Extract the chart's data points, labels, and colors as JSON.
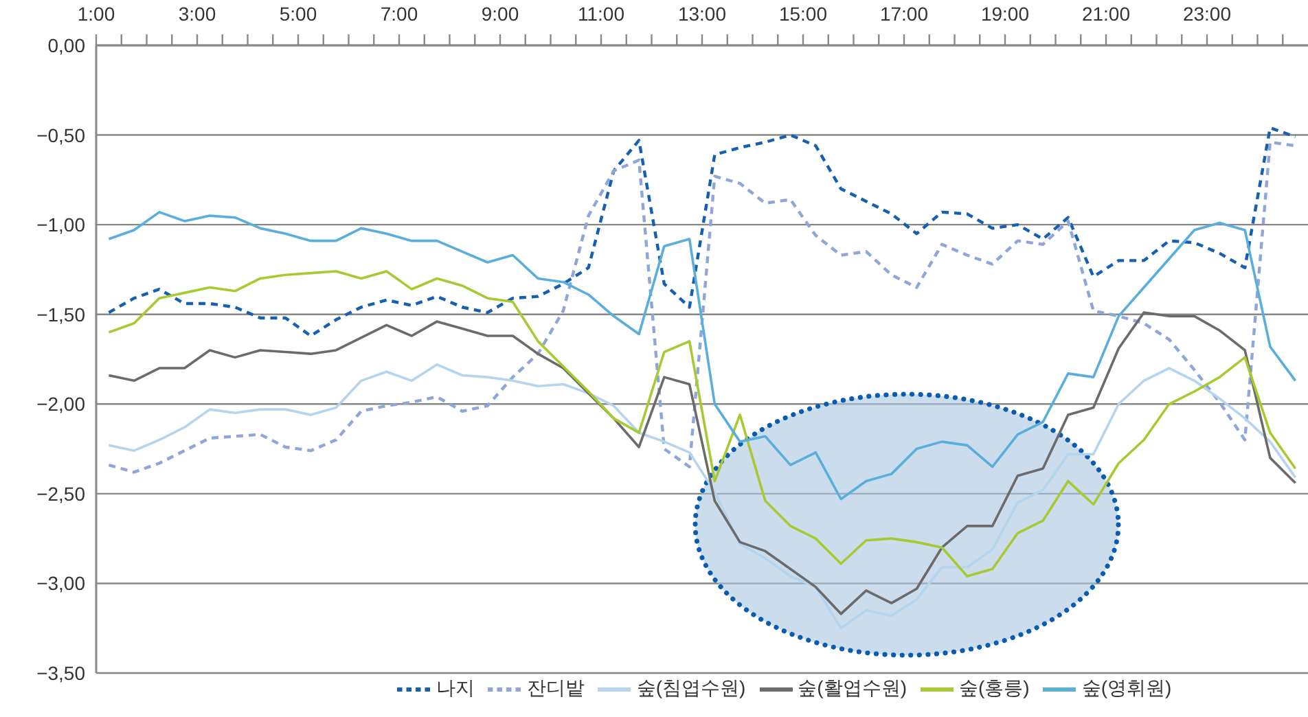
{
  "chart_data": {
    "type": "line",
    "x": [
      1.25,
      1.75,
      2.25,
      2.75,
      3.25,
      3.75,
      4.25,
      4.75,
      5.25,
      5.75,
      6.25,
      6.75,
      7.25,
      7.75,
      8.25,
      8.75,
      9.25,
      9.75,
      10.25,
      10.75,
      11.25,
      11.75,
      12.25,
      12.75,
      13.25,
      13.75,
      14.25,
      14.75,
      15.25,
      15.75,
      16.25,
      16.75,
      17.25,
      17.75,
      18.25,
      18.75,
      19.25,
      19.75,
      20.25,
      20.75,
      21.25,
      21.75,
      22.25,
      22.75,
      23.25,
      23.75,
      24.25,
      24.75
    ],
    "series": [
      {
        "name": "나지",
        "color": "#1560b0",
        "line_style": "dashed",
        "values": [
          -1.49,
          -1.41,
          -1.36,
          -1.44,
          -1.44,
          -1.46,
          -1.52,
          -1.52,
          -1.62,
          -1.53,
          -1.46,
          -1.42,
          -1.45,
          -1.4,
          -1.46,
          -1.49,
          -1.41,
          -1.4,
          -1.33,
          -1.24,
          -0.7,
          -0.53,
          -1.33,
          -1.46,
          -0.61,
          -0.57,
          -0.54,
          -0.5,
          -0.56,
          -0.8,
          -0.87,
          -0.94,
          -1.05,
          -0.93,
          -0.94,
          -1.02,
          -1.0,
          -1.08,
          -0.96,
          -1.29,
          -1.2,
          -1.2,
          -1.09,
          -1.1,
          -1.16,
          -1.24,
          -0.46,
          -0.51
        ]
      },
      {
        "name": "잔디밭",
        "color": "#8ea6d8",
        "line_style": "dashed",
        "values": [
          -2.34,
          -2.38,
          -2.33,
          -2.26,
          -2.19,
          -2.18,
          -2.17,
          -2.24,
          -2.26,
          -2.2,
          -2.04,
          -2.01,
          -1.99,
          -1.96,
          -2.04,
          -2.01,
          -1.85,
          -1.72,
          -1.48,
          -0.95,
          -0.7,
          -0.64,
          -2.25,
          -2.35,
          -0.73,
          -0.77,
          -0.88,
          -0.86,
          -1.06,
          -1.17,
          -1.15,
          -1.28,
          -1.35,
          -1.11,
          -1.17,
          -1.22,
          -1.09,
          -1.11,
          -0.98,
          -1.48,
          -1.51,
          -1.55,
          -1.64,
          -1.81,
          -1.99,
          -2.2,
          -0.54,
          -0.56
        ]
      },
      {
        "name": "숲(침엽수원)",
        "color": "#b5d5ee",
        "line_style": "solid",
        "values": [
          -2.23,
          -2.26,
          -2.2,
          -2.13,
          -2.03,
          -2.05,
          -2.03,
          -2.03,
          -2.06,
          -2.02,
          -1.87,
          -1.82,
          -1.87,
          -1.78,
          -1.84,
          -1.85,
          -1.87,
          -1.9,
          -1.89,
          -1.94,
          -2.01,
          -2.16,
          -2.21,
          -2.27,
          -2.49,
          -2.78,
          -2.86,
          -2.96,
          -3.02,
          -3.25,
          -3.15,
          -3.18,
          -3.09,
          -2.91,
          -2.91,
          -2.81,
          -2.55,
          -2.48,
          -2.28,
          -2.28,
          -2.0,
          -1.87,
          -1.8,
          -1.87,
          -1.97,
          -2.08,
          -2.21,
          -2.41
        ]
      },
      {
        "name": "숲(활엽수원)",
        "color": "#6b6b6b",
        "line_style": "solid",
        "values": [
          -1.84,
          -1.87,
          -1.8,
          -1.8,
          -1.7,
          -1.74,
          -1.7,
          -1.71,
          -1.72,
          -1.7,
          -1.63,
          -1.56,
          -1.62,
          -1.54,
          -1.58,
          -1.62,
          -1.62,
          -1.72,
          -1.8,
          -1.94,
          -2.08,
          -2.24,
          -1.85,
          -1.89,
          -2.54,
          -2.77,
          -2.82,
          -2.92,
          -3.02,
          -3.17,
          -3.04,
          -3.11,
          -3.03,
          -2.8,
          -2.68,
          -2.68,
          -2.4,
          -2.36,
          -2.06,
          -2.02,
          -1.69,
          -1.49,
          -1.51,
          -1.51,
          -1.59,
          -1.7,
          -2.3,
          -2.44
        ]
      },
      {
        "name": "숲(홍릉)",
        "color": "#a9c932",
        "line_style": "solid",
        "values": [
          -1.6,
          -1.55,
          -1.41,
          -1.38,
          -1.35,
          -1.37,
          -1.3,
          -1.28,
          -1.27,
          -1.26,
          -1.3,
          -1.26,
          -1.36,
          -1.3,
          -1.34,
          -1.41,
          -1.43,
          -1.65,
          -1.79,
          -1.93,
          -2.08,
          -2.16,
          -1.71,
          -1.65,
          -2.43,
          -2.06,
          -2.54,
          -2.68,
          -2.75,
          -2.89,
          -2.76,
          -2.75,
          -2.77,
          -2.8,
          -2.96,
          -2.92,
          -2.72,
          -2.65,
          -2.43,
          -2.56,
          -2.33,
          -2.2,
          -2.0,
          -1.93,
          -1.85,
          -1.74,
          -2.16,
          -2.36
        ]
      },
      {
        "name": "숲(영휘원)",
        "color": "#5aaedc",
        "line_style": "solid",
        "values": [
          -1.08,
          -1.03,
          -0.93,
          -0.98,
          -0.95,
          -0.96,
          -1.02,
          -1.05,
          -1.09,
          -1.09,
          -1.02,
          -1.05,
          -1.09,
          -1.09,
          -1.15,
          -1.21,
          -1.17,
          -1.3,
          -1.32,
          -1.39,
          -1.51,
          -1.61,
          -1.12,
          -1.08,
          -2.0,
          -2.21,
          -2.18,
          -2.34,
          -2.27,
          -2.53,
          -2.43,
          -2.39,
          -2.25,
          -2.21,
          -2.23,
          -2.35,
          -2.17,
          -2.1,
          -1.83,
          -1.85,
          -1.51,
          -1.35,
          -1.19,
          -1.03,
          -0.99,
          -1.03,
          -1.68,
          -1.87
        ]
      }
    ],
    "xlim": [
      1,
      25
    ],
    "xticks": [
      {
        "value": 1,
        "label": "1:00"
      },
      {
        "value": 1.5,
        "label": null
      },
      {
        "value": 2,
        "label": null
      },
      {
        "value": 2.5,
        "label": null
      },
      {
        "value": 3,
        "label": "3:00"
      },
      {
        "value": 3.5,
        "label": null
      },
      {
        "value": 4,
        "label": null
      },
      {
        "value": 4.5,
        "label": null
      },
      {
        "value": 5,
        "label": "5:00"
      },
      {
        "value": 5.5,
        "label": null
      },
      {
        "value": 6,
        "label": null
      },
      {
        "value": 6.5,
        "label": null
      },
      {
        "value": 7,
        "label": "7:00"
      },
      {
        "value": 7.5,
        "label": null
      },
      {
        "value": 8,
        "label": null
      },
      {
        "value": 8.5,
        "label": null
      },
      {
        "value": 9,
        "label": "9:00"
      },
      {
        "value": 9.5,
        "label": null
      },
      {
        "value": 10,
        "label": null
      },
      {
        "value": 10.5,
        "label": null
      },
      {
        "value": 11,
        "label": "11:00"
      },
      {
        "value": 11.5,
        "label": null
      },
      {
        "value": 12,
        "label": null
      },
      {
        "value": 12.5,
        "label": null
      },
      {
        "value": 13,
        "label": "13:00"
      },
      {
        "value": 13.5,
        "label": null
      },
      {
        "value": 14,
        "label": null
      },
      {
        "value": 14.5,
        "label": null
      },
      {
        "value": 15,
        "label": "15:00"
      },
      {
        "value": 15.5,
        "label": null
      },
      {
        "value": 16,
        "label": null
      },
      {
        "value": 16.5,
        "label": null
      },
      {
        "value": 17,
        "label": "17:00"
      },
      {
        "value": 17.5,
        "label": null
      },
      {
        "value": 18,
        "label": null
      },
      {
        "value": 18.5,
        "label": null
      },
      {
        "value": 19,
        "label": "19:00"
      },
      {
        "value": 19.5,
        "label": null
      },
      {
        "value": 20,
        "label": null
      },
      {
        "value": 20.5,
        "label": null
      },
      {
        "value": 21,
        "label": "21:00"
      },
      {
        "value": 21.5,
        "label": null
      },
      {
        "value": 22,
        "label": null
      },
      {
        "value": 22.5,
        "label": null
      },
      {
        "value": 23,
        "label": "23:00"
      },
      {
        "value": 23.5,
        "label": null
      },
      {
        "value": 24,
        "label": null
      },
      {
        "value": 24.5,
        "label": null
      }
    ],
    "ylim": [
      -3.5,
      0
    ],
    "yticks": [
      {
        "value": 0,
        "label": "0,00"
      },
      {
        "value": -0.5,
        "label": "−0,50"
      },
      {
        "value": -1,
        "label": "−1,00"
      },
      {
        "value": -1.5,
        "label": "−1,50"
      },
      {
        "value": -2,
        "label": "−2,00"
      },
      {
        "value": -2.5,
        "label": "−2,50"
      },
      {
        "value": -3,
        "label": "−3,00"
      },
      {
        "value": -3.5,
        "label": "−3,50"
      }
    ],
    "grid": "y",
    "legend": "bottom"
  }
}
